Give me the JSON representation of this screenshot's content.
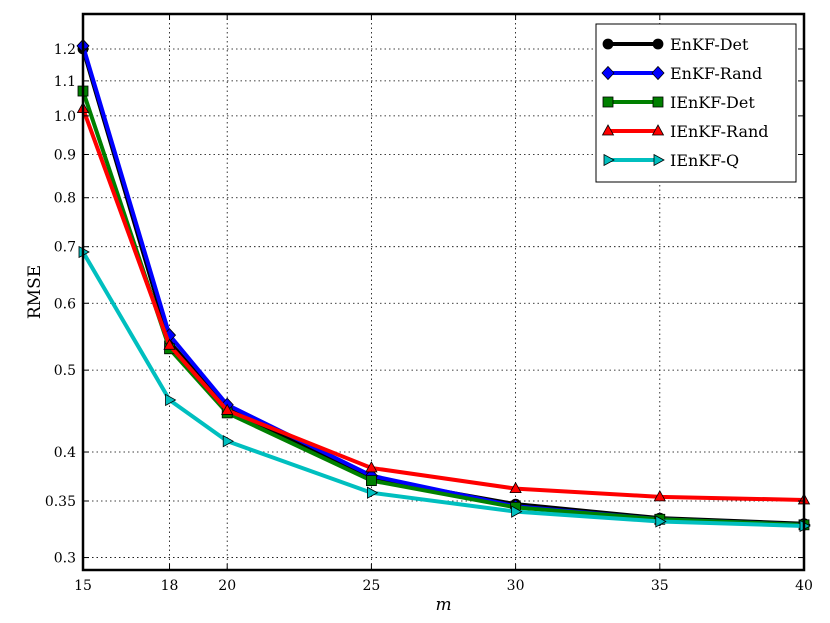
{
  "chart_data": {
    "type": "line",
    "title": "",
    "xlabel": "m",
    "ylabel": "RMSE",
    "x": [
      15,
      18,
      20,
      25,
      30,
      35,
      40
    ],
    "xlim": [
      15,
      40
    ],
    "ylim": [
      0.29,
      1.32
    ],
    "yscale": "log",
    "x_ticks": [
      15,
      18,
      20,
      25,
      30,
      35,
      40
    ],
    "y_ticks": [
      0.3,
      0.35,
      0.4,
      0.5,
      0.6,
      0.7,
      0.8,
      0.9,
      1.0,
      1.1,
      1.2
    ],
    "y_tick_labels": [
      "0.3",
      "0.35",
      "0.4",
      "0.5",
      "0.6",
      "0.7",
      "0.8",
      "0.9",
      "1.0",
      "1.1",
      "1.2"
    ],
    "grid": true,
    "legend_position": "top-right",
    "series": [
      {
        "name": "EnKF-Det",
        "color": "#000000",
        "marker": "circle",
        "values": [
          1.2,
          0.54,
          0.45,
          0.372,
          0.347,
          0.334,
          0.329
        ]
      },
      {
        "name": "EnKF-Rand",
        "color": "#0000ff",
        "marker": "diamond",
        "values": [
          1.21,
          0.55,
          0.455,
          0.375,
          0.345,
          0.333,
          0.328
        ]
      },
      {
        "name": "IEnKF-Det",
        "color": "#008000",
        "marker": "square",
        "values": [
          1.07,
          0.53,
          0.445,
          0.37,
          0.344,
          0.333,
          0.328
        ]
      },
      {
        "name": "IEnKF-Rand",
        "color": "#ff0000",
        "marker": "triangle-up",
        "values": [
          1.02,
          0.535,
          0.448,
          0.383,
          0.362,
          0.354,
          0.351
        ]
      },
      {
        "name": "IEnKF-Q",
        "color": "#00bfbf",
        "marker": "triangle-right",
        "values": [
          0.69,
          0.461,
          0.412,
          0.358,
          0.34,
          0.331,
          0.327
        ]
      }
    ]
  }
}
